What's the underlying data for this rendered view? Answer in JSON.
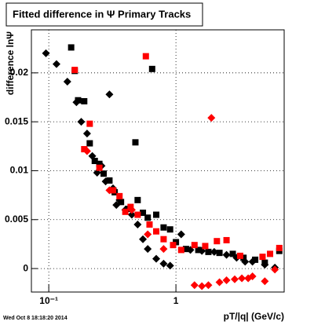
{
  "chart_data": {
    "type": "scatter",
    "title": "Fitted difference in  Ψ  Primary Tracks",
    "x_label": "pT/|q| (GeV/c)",
    "y_label": "difference lnΨ",
    "footer": "Wed Oct  8 18:18:20 2014",
    "xlim": [
      0.073,
      7.1
    ],
    "ylim": [
      -0.0024,
      0.0244
    ],
    "log_x": true,
    "grid": true,
    "xticks": [
      {
        "value": 0.1,
        "label": "10⁻¹"
      },
      1
    ],
    "yticks": [
      0,
      0.005,
      0.01,
      0.015,
      0.02
    ],
    "series": [
      {
        "color": "#000000",
        "marker": "diamond",
        "x": [
          0.095,
          0.115,
          0.14,
          0.165,
          0.18,
          0.2,
          0.22,
          0.24,
          0.26,
          0.28,
          0.3,
          0.32,
          0.34,
          0.36,
          0.4,
          0.45,
          0.5,
          0.55,
          0.6,
          0.7,
          0.8,
          0.9,
          1.1,
          1.3,
          1.6,
          2.0,
          2.5,
          3.0,
          3.5,
          4.0,
          5.0,
          6.0
        ],
        "values": [
          0.022,
          0.0209,
          0.0191,
          0.017,
          0.015,
          0.0138,
          0.0115,
          0.0098,
          0.0105,
          0.0089,
          0.0178,
          0.0082,
          0.0065,
          0.007,
          0.006,
          0.0055,
          0.0045,
          0.003,
          0.002,
          0.001,
          0.0005,
          0.0003,
          0.0035,
          0.0019,
          0.0018,
          0.0017,
          0.0014,
          0.0011,
          0.0007,
          0.0007,
          0.0004,
          0.0001
        ]
      },
      {
        "color": "#000000",
        "marker": "square",
        "x": [
          0.15,
          0.16,
          0.17,
          0.19,
          0.21,
          0.23,
          0.25,
          0.27,
          0.3,
          0.33,
          0.37,
          0.42,
          0.48,
          0.5,
          0.55,
          0.6,
          0.65,
          0.7,
          0.8,
          0.9,
          1.0,
          1.2,
          1.5,
          1.8,
          2.2,
          2.8,
          3.4,
          4.2,
          5.0,
          6.5
        ],
        "values": [
          0.0226,
          0.0202,
          0.0172,
          0.0171,
          0.0128,
          0.011,
          0.0107,
          0.0097,
          0.009,
          0.0078,
          0.0068,
          0.0061,
          0.0129,
          0.007,
          0.0057,
          0.0052,
          0.0204,
          0.0055,
          0.0042,
          0.004,
          0.0027,
          0.002,
          0.0019,
          0.0017,
          0.0016,
          0.0015,
          0.0011,
          0.0009,
          0.0006,
          0.0018
        ]
      },
      {
        "color": "#ff0000",
        "marker": "square",
        "x": [
          0.16,
          0.19,
          0.21,
          0.25,
          0.32,
          0.36,
          0.4,
          0.44,
          0.5,
          0.58,
          0.62,
          0.7,
          0.8,
          0.95,
          1.1,
          1.4,
          1.7,
          2.1,
          2.5,
          3.2,
          4.8,
          5.5,
          6.5
        ],
        "values": [
          0.0203,
          0.0122,
          0.0148,
          0.0103,
          0.008,
          0.0074,
          0.0058,
          0.0063,
          0.0055,
          0.0217,
          0.0045,
          0.0038,
          0.003,
          0.0024,
          0.0019,
          0.0024,
          0.0023,
          0.0028,
          0.0029,
          0.0013,
          0.0012,
          0.0015,
          0.0021
        ]
      },
      {
        "color": "#ff0000",
        "marker": "diamond",
        "x": [
          0.2,
          0.3,
          0.45,
          0.6,
          0.8,
          1.9,
          1.4,
          1.6,
          1.8,
          2.2,
          2.5,
          2.9,
          3.3,
          3.7,
          4.0,
          5.0,
          6.0
        ],
        "values": [
          0.012,
          0.008,
          0.006,
          0.0035,
          0.002,
          0.0154,
          -0.0017,
          -0.0018,
          -0.0017,
          -0.0014,
          -0.0012,
          -0.0011,
          -0.001,
          -0.001,
          -0.0008,
          -0.0013,
          -0.0001
        ]
      }
    ]
  }
}
